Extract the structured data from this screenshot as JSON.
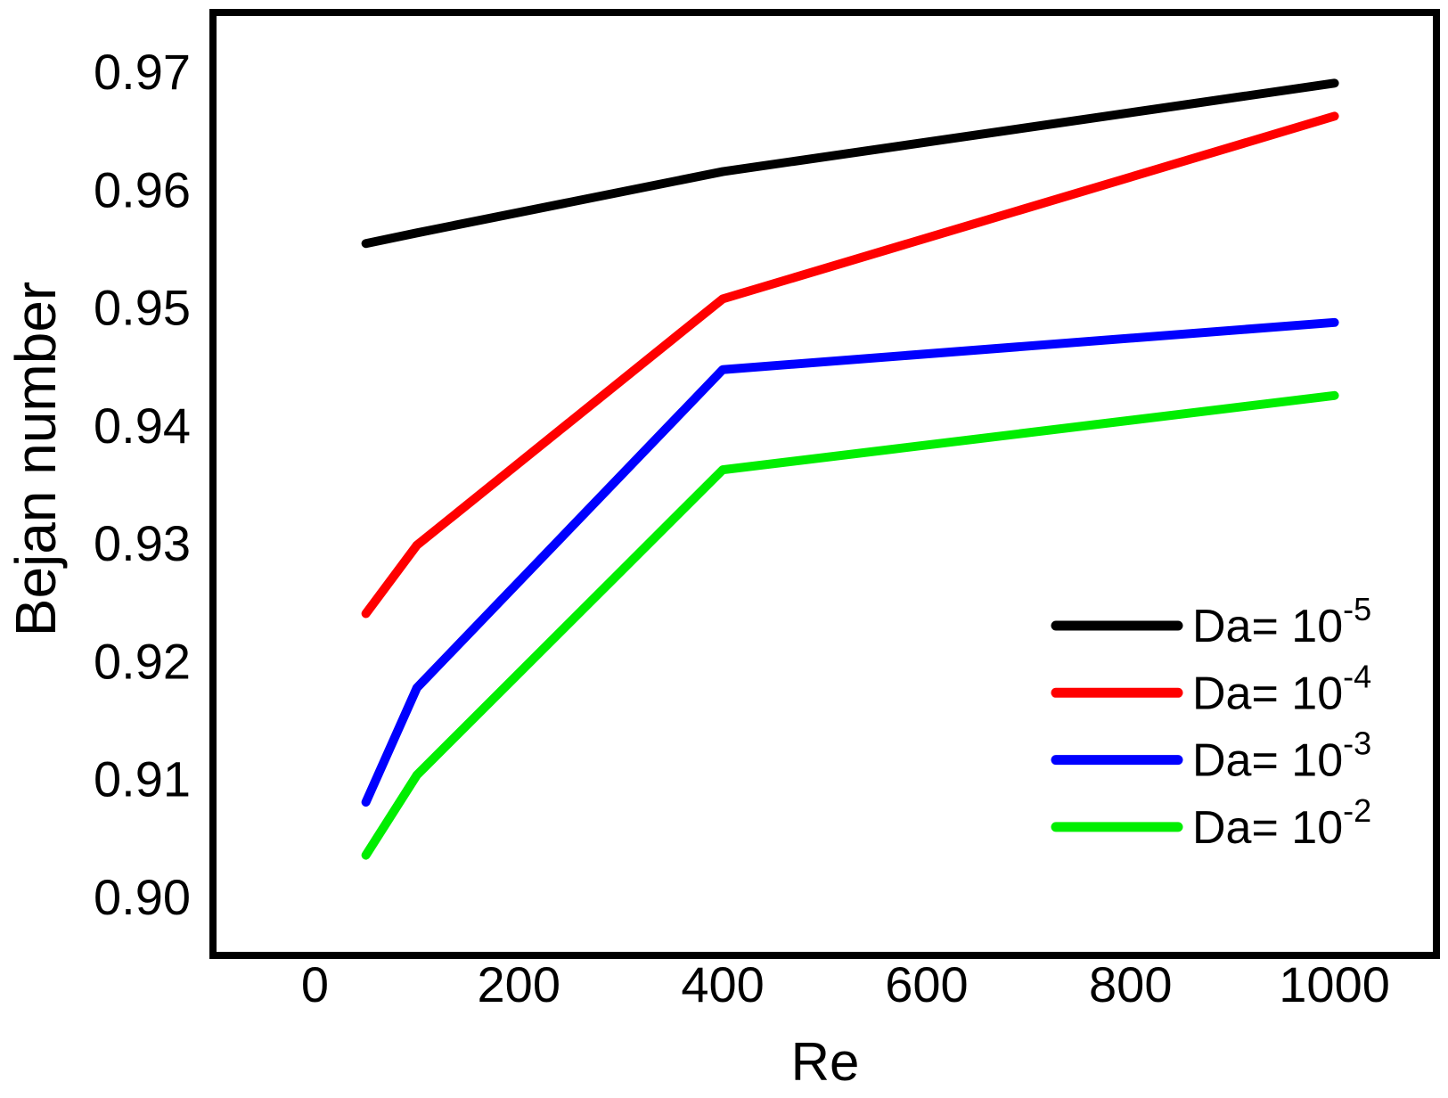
{
  "figure": {
    "background": "#ffffff"
  },
  "chart_data": {
    "type": "line",
    "title": "",
    "xlabel": "Re",
    "ylabel": "Bejan number",
    "xlim": [
      -100,
      1100
    ],
    "ylim": [
      0.895,
      0.975
    ],
    "grid": false,
    "legend_position": "lower right",
    "x_ticks": [
      0,
      200,
      400,
      600,
      800,
      1000
    ],
    "x_tick_labels": [
      "0",
      "200",
      "400",
      "600",
      "800",
      "1000"
    ],
    "y_ticks": [
      0.9,
      0.91,
      0.92,
      0.93,
      0.94,
      0.95,
      0.96,
      0.97
    ],
    "y_tick_labels": [
      "0.90",
      "0.91",
      "0.92",
      "0.93",
      "0.94",
      "0.95",
      "0.96",
      "0.97"
    ],
    "x": [
      50,
      100,
      400,
      1000
    ],
    "series": [
      {
        "name": "Da= 10^-5",
        "legend_base": "Da= 10",
        "legend_exp": "-5",
        "color": "#000000",
        "values": [
          0.9554,
          0.9563,
          0.9615,
          0.969
        ]
      },
      {
        "name": "Da= 10^-4",
        "legend_base": "Da= 10",
        "legend_exp": "-4",
        "color": "#ff0000",
        "values": [
          0.924,
          0.9298,
          0.9507,
          0.9662
        ]
      },
      {
        "name": "Da= 10^-3",
        "legend_base": "Da= 10",
        "legend_exp": "-3",
        "color": "#0000ff",
        "values": [
          0.908,
          0.9177,
          0.9447,
          0.9487
        ]
      },
      {
        "name": "Da= 10^-2",
        "legend_base": "Da= 10",
        "legend_exp": "-2",
        "color": "#00ee00",
        "values": [
          0.9035,
          0.9103,
          0.9362,
          0.9425
        ]
      }
    ]
  }
}
